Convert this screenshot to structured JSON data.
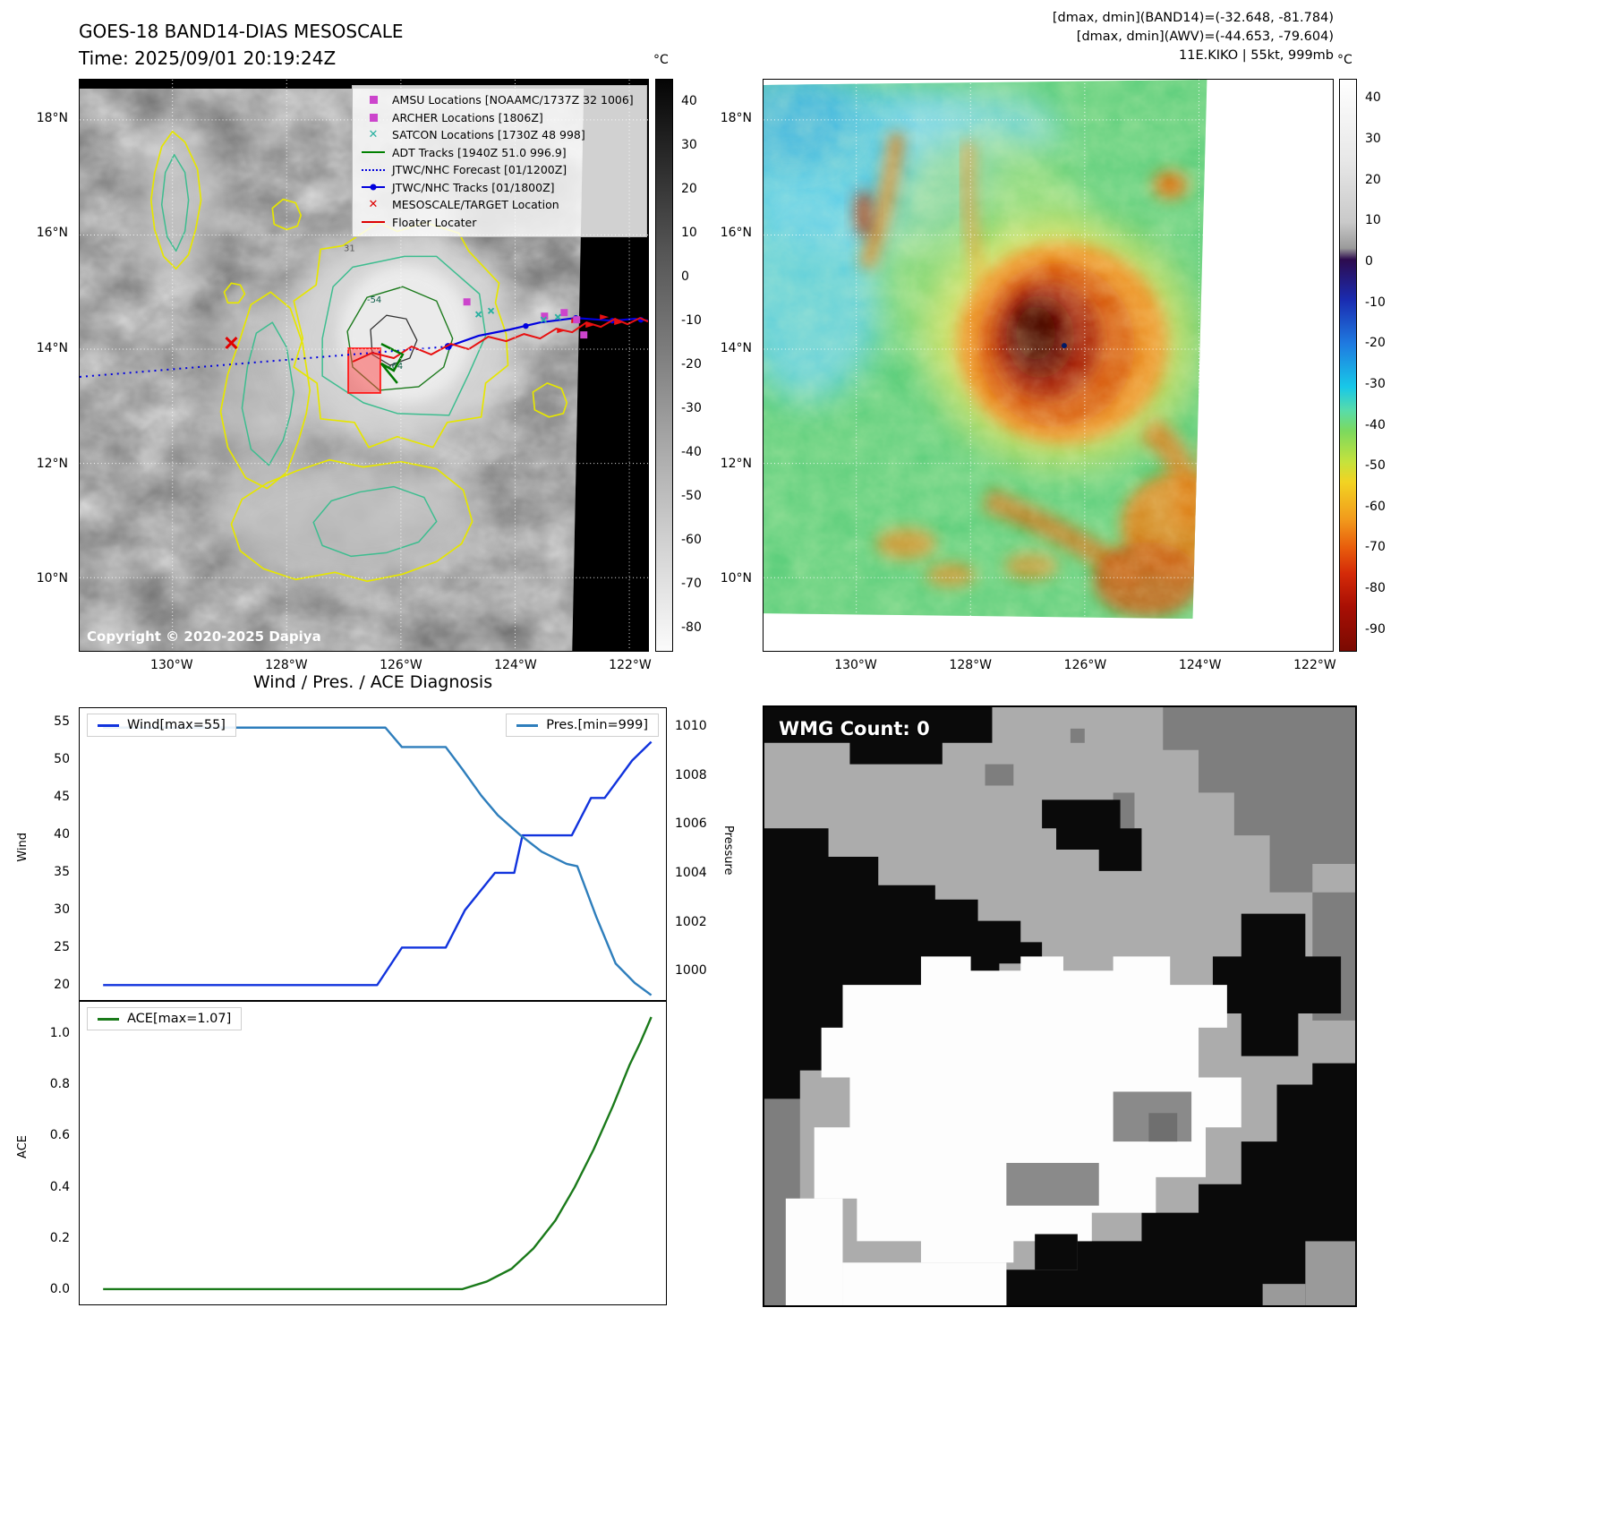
{
  "panel_ir": {
    "title": "GOES-18 BAND14-DIAS MESOSCALE",
    "subtitle": "Time: 2025/09/01 20:19:24Z",
    "colorbar_unit": "°C",
    "colorbar_ticks": [
      "40",
      "30",
      "20",
      "10",
      "0",
      "-10",
      "-20",
      "-30",
      "-40",
      "-50",
      "-60",
      "-70",
      "-80"
    ],
    "lat_ticks": [
      "18°N",
      "16°N",
      "14°N",
      "12°N",
      "10°N"
    ],
    "lon_ticks": [
      "130°W",
      "128°W",
      "126°W",
      "124°W",
      "122°W"
    ],
    "copyright": "Copyright © 2020-2025 Dapiya",
    "contour_labels": [
      "31",
      "-54",
      "-64"
    ],
    "legend": [
      {
        "label": "AMSU Locations [NOAAMC/1737Z 32 1006]",
        "marker": "square",
        "color": "#cc44cc"
      },
      {
        "label": "ARCHER Locations [1806Z]",
        "marker": "square",
        "color": "#cc44cc"
      },
      {
        "label": "SATCON Locations [1730Z 48 998]",
        "marker": "x",
        "color": "#2ab0a0"
      },
      {
        "label": "ADT Tracks [1940Z 51.0 996.9]",
        "marker": "line",
        "color": "#008000"
      },
      {
        "label": "JTWC/NHC Forecast [01/1200Z]",
        "marker": "dotted",
        "color": "#0000dd"
      },
      {
        "label": "JTWC/NHC Tracks [01/1800Z]",
        "marker": "line-dot",
        "color": "#0000dd"
      },
      {
        "label": "MESOSCALE/TARGET Location",
        "marker": "x",
        "color": "#dd0000"
      },
      {
        "label": "Floater Locater",
        "marker": "line",
        "color": "#dd0000"
      }
    ]
  },
  "panel_awv": {
    "info_line1": "[dmax, dmin](BAND14)=(-32.648, -81.784)",
    "info_line2": "[dmax, dmin](AWV)=(-44.653, -79.604)",
    "info_line3": "11E.KIKO | 55kt, 999mb",
    "colorbar_unit": "°C",
    "colorbar_ticks": [
      "40",
      "30",
      "20",
      "10",
      "0",
      "-10",
      "-20",
      "-30",
      "-40",
      "-50",
      "-60",
      "-70",
      "-80",
      "-90"
    ],
    "lat_ticks": [
      "18°N",
      "16°N",
      "14°N",
      "12°N",
      "10°N"
    ],
    "lon_ticks": [
      "130°W",
      "128°W",
      "126°W",
      "124°W",
      "122°W"
    ]
  },
  "diagnosis": {
    "title": "Wind / Pres. / ACE Diagnosis",
    "wind_axis_label": "Wind",
    "pressure_axis_label": "Pressure",
    "ace_axis_label": "ACE"
  },
  "wmg": {
    "label": "WMG Count: 0"
  },
  "chart_data": [
    {
      "type": "line",
      "name": "Wind",
      "legend": "Wind[max=55]",
      "color": "#1133dd",
      "ylabel": "Wind",
      "ylim": [
        18,
        57
      ],
      "yticks": [
        "20",
        "25",
        "30",
        "35",
        "40",
        "45",
        "50",
        "55"
      ],
      "x": [
        0,
        0.5,
        0.545,
        0.625,
        0.66,
        0.715,
        0.75,
        0.765,
        0.855,
        0.89,
        0.915,
        0.965,
        1.0
      ],
      "y": [
        20,
        20,
        25,
        25,
        30,
        35,
        35,
        40,
        40,
        45,
        45,
        50,
        52.5
      ]
    },
    {
      "type": "line",
      "name": "Pres.",
      "legend": "Pres.[min=999]",
      "color": "#2e7ebc",
      "ylabel": "Pressure",
      "ylim": [
        998.8,
        1010.8
      ],
      "yticks": [
        "1000",
        "1002",
        "1004",
        "1006",
        "1008",
        "1010"
      ],
      "x": [
        0,
        0.515,
        0.545,
        0.625,
        0.655,
        0.69,
        0.72,
        0.76,
        0.8,
        0.845,
        0.865,
        0.9,
        0.935,
        0.97,
        1.0
      ],
      "y": [
        1010,
        1010,
        1009.2,
        1009.2,
        1008.3,
        1007.2,
        1006.4,
        1005.6,
        1004.9,
        1004.4,
        1004.3,
        1002.2,
        1000.3,
        999.5,
        999.0
      ]
    },
    {
      "type": "line",
      "name": "ACE",
      "legend": "ACE[max=1.07]",
      "color": "#1a7a1a",
      "ylabel": "ACE",
      "ylim": [
        -0.06,
        1.13
      ],
      "yticks": [
        "0.0",
        "0.2",
        "0.4",
        "0.6",
        "0.8",
        "1.0"
      ],
      "x": [
        0,
        0.655,
        0.7,
        0.745,
        0.785,
        0.825,
        0.86,
        0.895,
        0.93,
        0.96,
        0.98,
        1.0
      ],
      "y": [
        0,
        0,
        0.03,
        0.08,
        0.16,
        0.27,
        0.4,
        0.55,
        0.72,
        0.88,
        0.97,
        1.07
      ]
    }
  ]
}
